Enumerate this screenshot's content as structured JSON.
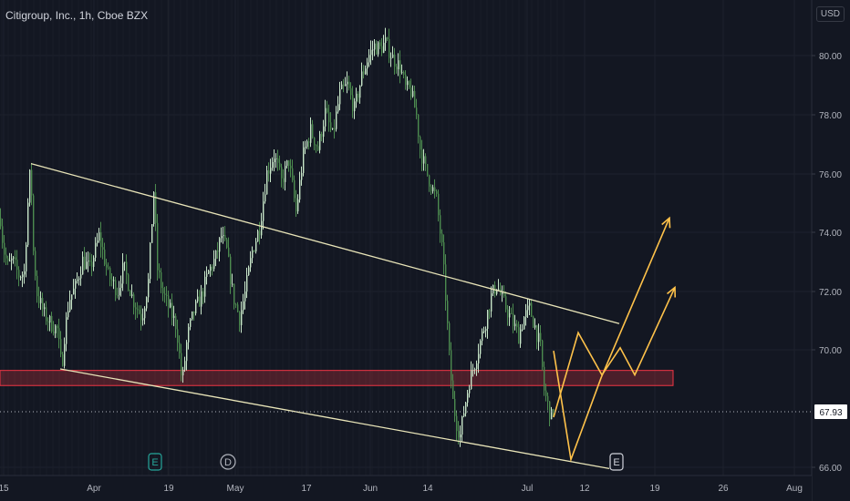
{
  "header": {
    "symbol_title": "Citigroup, Inc., 1h, Cboe BZX",
    "currency": "USD"
  },
  "chart_data": {
    "type": "candlestick",
    "title": "Citigroup, Inc., 1h, Cboe BZX",
    "x_ticks": [
      "15",
      "Apr",
      "19",
      "May",
      "17",
      "Jun",
      "14",
      "Jul",
      "12",
      "19",
      "26",
      "Aug"
    ],
    "y_ticks": [
      "80.00",
      "78.00",
      "76.00",
      "74.00",
      "72.00",
      "70.00",
      "66.00"
    ],
    "ylim": [
      65.8,
      81.4
    ],
    "last_price": "67.93",
    "grid": true,
    "price_path": [
      [
        0,
        74.3
      ],
      [
        3,
        73.3
      ],
      [
        8,
        72.7
      ],
      [
        13,
        72.9
      ],
      [
        20,
        72.4
      ],
      [
        26,
        72.5
      ],
      [
        30,
        74.8
      ],
      [
        33,
        76.1
      ],
      [
        36,
        73.2
      ],
      [
        40,
        71.8
      ],
      [
        48,
        71.1
      ],
      [
        55,
        70.8
      ],
      [
        62,
        70.6
      ],
      [
        67,
        69.3
      ],
      [
        70,
        70.4
      ],
      [
        75,
        71.6
      ],
      [
        82,
        72.0
      ],
      [
        90,
        72.9
      ],
      [
        98,
        72.6
      ],
      [
        108,
        73.7
      ],
      [
        118,
        72.4
      ],
      [
        128,
        71.9
      ],
      [
        135,
        72.7
      ],
      [
        145,
        71.6
      ],
      [
        155,
        71.0
      ],
      [
        162,
        72.2
      ],
      [
        168,
        75.2
      ],
      [
        172,
        72.6
      ],
      [
        178,
        71.8
      ],
      [
        185,
        71.3
      ],
      [
        193,
        70.7
      ],
      [
        199,
        68.8
      ],
      [
        205,
        70.4
      ],
      [
        212,
        71.2
      ],
      [
        220,
        71.7
      ],
      [
        228,
        72.5
      ],
      [
        236,
        73.0
      ],
      [
        242,
        73.7
      ],
      [
        248,
        73.2
      ],
      [
        255,
        71.7
      ],
      [
        262,
        71.0
      ],
      [
        268,
        71.8
      ],
      [
        276,
        73.2
      ],
      [
        284,
        74.0
      ],
      [
        292,
        75.8
      ],
      [
        300,
        76.4
      ],
      [
        308,
        75.5
      ],
      [
        316,
        76.2
      ],
      [
        324,
        74.5
      ],
      [
        332,
        76.4
      ],
      [
        340,
        77.2
      ],
      [
        348,
        76.6
      ],
      [
        356,
        77.8
      ],
      [
        364,
        77.0
      ],
      [
        372,
        78.4
      ],
      [
        380,
        78.7
      ],
      [
        388,
        77.9
      ],
      [
        396,
        79.0
      ],
      [
        404,
        79.7
      ],
      [
        410,
        80.0
      ],
      [
        416,
        79.9
      ],
      [
        422,
        80.1
      ],
      [
        430,
        79.6
      ],
      [
        438,
        79.3
      ],
      [
        444,
        78.6
      ],
      [
        450,
        78.5
      ],
      [
        456,
        77.7
      ],
      [
        460,
        76.6
      ],
      [
        466,
        75.9
      ],
      [
        472,
        75.4
      ],
      [
        478,
        74.9
      ],
      [
        484,
        73.3
      ],
      [
        488,
        71.7
      ],
      [
        492,
        69.7
      ],
      [
        496,
        68.2
      ],
      [
        500,
        67.5
      ],
      [
        504,
        67.1
      ],
      [
        508,
        67.9
      ],
      [
        514,
        68.9
      ],
      [
        520,
        69.5
      ],
      [
        526,
        70.2
      ],
      [
        532,
        70.9
      ],
      [
        538,
        71.7
      ],
      [
        544,
        72.1
      ],
      [
        550,
        71.6
      ],
      [
        556,
        71.2
      ],
      [
        562,
        70.8
      ],
      [
        568,
        70.4
      ],
      [
        574,
        71.0
      ],
      [
        580,
        71.3
      ],
      [
        586,
        70.7
      ],
      [
        592,
        70.0
      ],
      [
        596,
        68.6
      ],
      [
        600,
        68.1
      ],
      [
        604,
        67.7
      ],
      [
        607,
        68.2
      ]
    ],
    "trendlines": [
      {
        "from": [
          34,
          76.1
        ],
        "to": [
          679,
          70.8
        ],
        "color": "#e8e4b8"
      },
      {
        "from": [
          66,
          69.3
        ],
        "to": [
          668,
          66.0
        ],
        "color": "#e8e4b8"
      }
    ],
    "zone": {
      "x_from": 0,
      "x_to": 738,
      "y_top": 69.25,
      "y_bottom": 68.75,
      "color": "#f23645"
    },
    "forecast_paths": [
      {
        "points": [
          [
            607,
            69.9
          ],
          [
            626,
            66.3
          ],
          [
            659,
            69.0
          ],
          [
            734,
            74.3
          ]
        ],
        "color": "#ffc24a"
      },
      {
        "points": [
          [
            607,
            67.7
          ],
          [
            634,
            70.5
          ],
          [
            660,
            69.1
          ],
          [
            680,
            70.0
          ],
          [
            696,
            69.1
          ],
          [
            740,
            72.0
          ]
        ],
        "color": "#ffc24a"
      }
    ],
    "event_markers": [
      {
        "label": "E",
        "x": 170,
        "color": "#26a69a"
      },
      {
        "label": "D",
        "x": 250,
        "color": "#b2b5be"
      },
      {
        "label": "E",
        "x": 676,
        "color": "#d1d4dc"
      }
    ]
  }
}
